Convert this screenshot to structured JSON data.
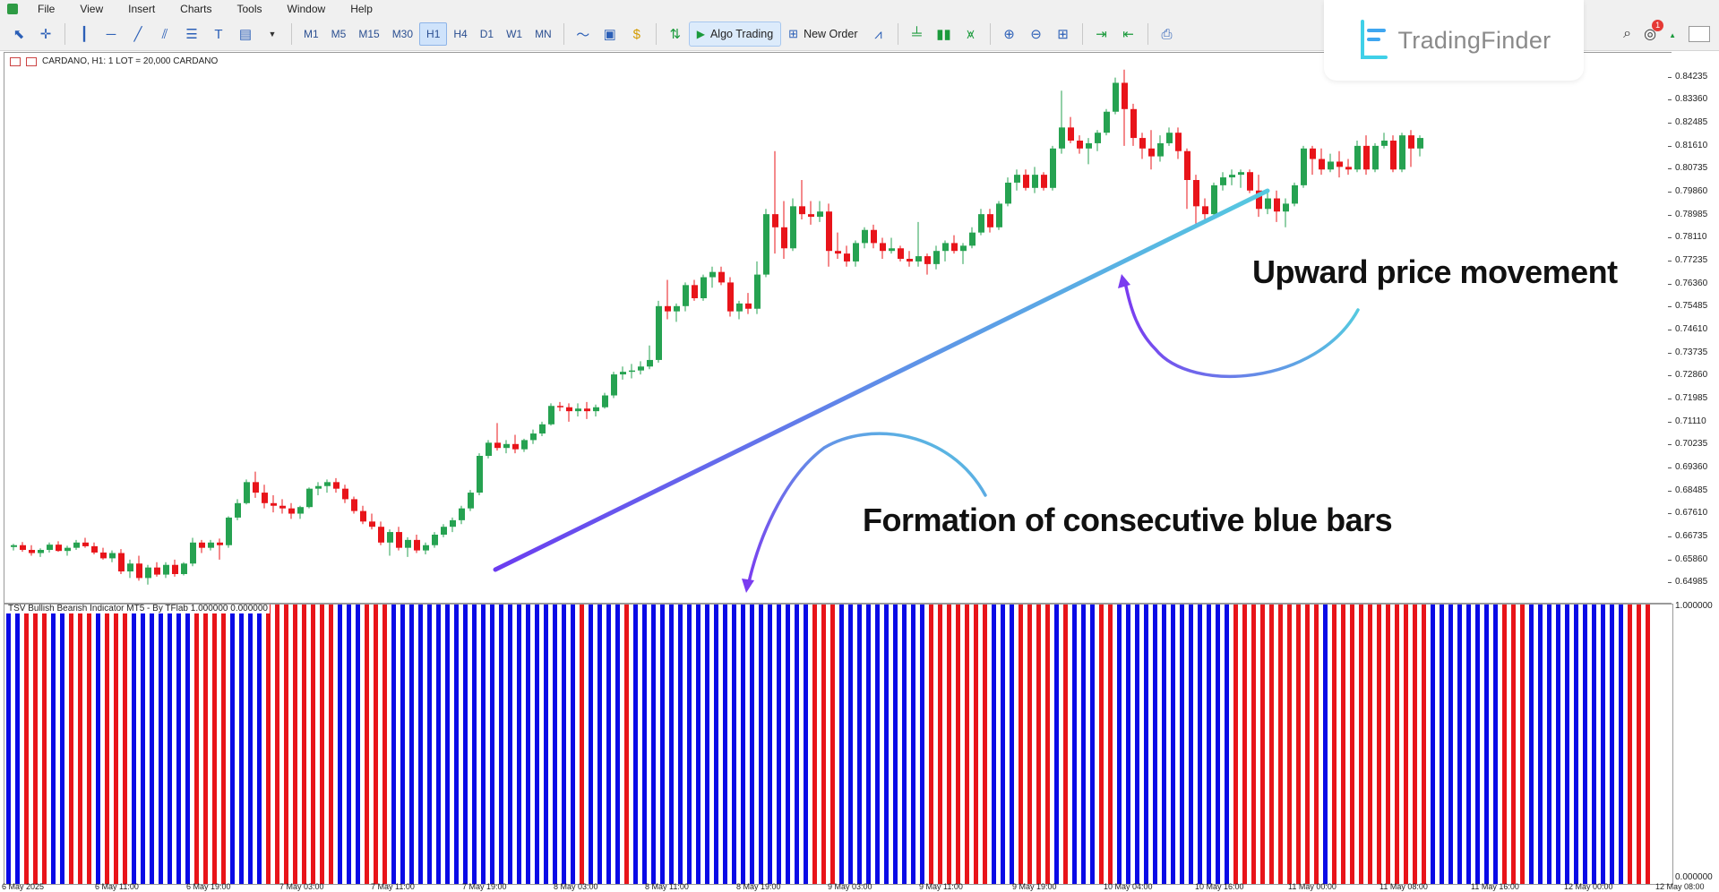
{
  "menu": [
    "File",
    "View",
    "Insert",
    "Charts",
    "Tools",
    "Window",
    "Help"
  ],
  "toolbar": {
    "timeframes": [
      "M1",
      "M5",
      "M15",
      "M30",
      "H1",
      "H4",
      "D1",
      "W1",
      "MN"
    ],
    "active_timeframe": "H1",
    "algo_trading_label": "Algo Trading",
    "new_order_label": "New Order"
  },
  "logo": {
    "text": "TradingFinder"
  },
  "notifications": {
    "count": "1"
  },
  "main_chart": {
    "title": "CARDANO, H1:  1 LOT = 20,000 CARDANO",
    "price_labels": [
      "0.84235",
      "0.83360",
      "0.82485",
      "0.81610",
      "0.80735",
      "0.79860",
      "0.78985",
      "0.78110",
      "0.77235",
      "0.76360",
      "0.75485",
      "0.74610",
      "0.73735",
      "0.72860",
      "0.71985",
      "0.71110",
      "0.70235",
      "0.69360",
      "0.68485",
      "0.67610",
      "0.66735",
      "0.65860",
      "0.64985"
    ]
  },
  "indicator": {
    "title": "TSV Bullish Bearish Indicator MT5 - By TFlab 1.000000 0.000000",
    "max_label": "1.000000",
    "min_label": "0.000000",
    "bullish_color": "#0a0ae6",
    "bearish_color": "#e8141a"
  },
  "time_labels": [
    "6 May 2025",
    "6 May 11:00",
    "6 May 19:00",
    "7 May 03:00",
    "7 May 11:00",
    "7 May 19:00",
    "8 May 03:00",
    "8 May 11:00",
    "8 May 19:00",
    "9 May 03:00",
    "9 May 11:00",
    "9 May 19:00",
    "10 May 04:00",
    "10 May 16:00",
    "11 May 00:00",
    "11 May 08:00",
    "11 May 16:00",
    "12 May 00:00",
    "12 May 08:00"
  ],
  "annotations": {
    "upward": "Upward price movement",
    "blue_bars": "Formation of consecutive blue bars"
  },
  "chart_data": {
    "type": "candlestick",
    "symbol": "CARDANO",
    "timeframe": "H1",
    "bull_color": "#26a251",
    "bear_color": "#e8141a",
    "ylim": [
      0.6455,
      0.848
    ],
    "candles": [
      [
        0.6633,
        0.6645,
        0.662,
        0.664
      ],
      [
        0.664,
        0.6652,
        0.6615,
        0.6622
      ],
      [
        0.6622,
        0.664,
        0.66,
        0.661
      ],
      [
        0.661,
        0.6628,
        0.6595,
        0.6622
      ],
      [
        0.6622,
        0.665,
        0.6612,
        0.6642
      ],
      [
        0.6642,
        0.6655,
        0.6615,
        0.6618
      ],
      [
        0.6618,
        0.6638,
        0.66,
        0.663
      ],
      [
        0.663,
        0.666,
        0.6622,
        0.665
      ],
      [
        0.665,
        0.6668,
        0.663,
        0.6636
      ],
      [
        0.6636,
        0.665,
        0.6605,
        0.6612
      ],
      [
        0.6612,
        0.663,
        0.6585,
        0.659
      ],
      [
        0.659,
        0.662,
        0.6575,
        0.661
      ],
      [
        0.661,
        0.6625,
        0.653,
        0.654
      ],
      [
        0.654,
        0.6585,
        0.6515,
        0.657
      ],
      [
        0.657,
        0.66,
        0.6505,
        0.6515
      ],
      [
        0.6515,
        0.6565,
        0.649,
        0.6555
      ],
      [
        0.6555,
        0.6575,
        0.652,
        0.6528
      ],
      [
        0.6528,
        0.6575,
        0.6515,
        0.6565
      ],
      [
        0.6565,
        0.6585,
        0.652,
        0.653
      ],
      [
        0.653,
        0.6575,
        0.6525,
        0.657
      ],
      [
        0.657,
        0.6668,
        0.656,
        0.665
      ],
      [
        0.665,
        0.666,
        0.661,
        0.663
      ],
      [
        0.663,
        0.666,
        0.662,
        0.665
      ],
      [
        0.665,
        0.6665,
        0.6585,
        0.664
      ],
      [
        0.664,
        0.675,
        0.663,
        0.6745
      ],
      [
        0.6745,
        0.6815,
        0.6735,
        0.68
      ],
      [
        0.68,
        0.689,
        0.6795,
        0.688
      ],
      [
        0.688,
        0.692,
        0.682,
        0.684
      ],
      [
        0.684,
        0.687,
        0.678,
        0.68
      ],
      [
        0.68,
        0.683,
        0.6765,
        0.679
      ],
      [
        0.679,
        0.6815,
        0.676,
        0.678
      ],
      [
        0.678,
        0.68,
        0.674,
        0.676
      ],
      [
        0.676,
        0.679,
        0.674,
        0.6785
      ],
      [
        0.6785,
        0.686,
        0.678,
        0.6855
      ],
      [
        0.6855,
        0.688,
        0.683,
        0.6865
      ],
      [
        0.6865,
        0.689,
        0.684,
        0.688
      ],
      [
        0.688,
        0.6895,
        0.684,
        0.6855
      ],
      [
        0.6855,
        0.687,
        0.68,
        0.6815
      ],
      [
        0.6815,
        0.6825,
        0.676,
        0.677
      ],
      [
        0.677,
        0.679,
        0.672,
        0.673
      ],
      [
        0.673,
        0.676,
        0.67,
        0.671
      ],
      [
        0.671,
        0.673,
        0.664,
        0.665
      ],
      [
        0.665,
        0.67,
        0.66,
        0.669
      ],
      [
        0.669,
        0.671,
        0.662,
        0.663
      ],
      [
        0.663,
        0.667,
        0.6595,
        0.666
      ],
      [
        0.666,
        0.668,
        0.661,
        0.662
      ],
      [
        0.662,
        0.665,
        0.6605,
        0.664
      ],
      [
        0.664,
        0.669,
        0.663,
        0.668
      ],
      [
        0.668,
        0.672,
        0.667,
        0.671
      ],
      [
        0.671,
        0.6745,
        0.669,
        0.6735
      ],
      [
        0.6735,
        0.679,
        0.672,
        0.678
      ],
      [
        0.678,
        0.685,
        0.677,
        0.684
      ],
      [
        0.684,
        0.699,
        0.683,
        0.698
      ],
      [
        0.698,
        0.704,
        0.697,
        0.703
      ],
      [
        0.703,
        0.7105,
        0.7,
        0.701
      ],
      [
        0.701,
        0.704,
        0.699,
        0.7025
      ],
      [
        0.7025,
        0.706,
        0.699,
        0.7005
      ],
      [
        0.7005,
        0.7045,
        0.6995,
        0.704
      ],
      [
        0.704,
        0.708,
        0.7025,
        0.7065
      ],
      [
        0.7065,
        0.711,
        0.7055,
        0.71
      ],
      [
        0.71,
        0.718,
        0.7095,
        0.717
      ],
      [
        0.717,
        0.7185,
        0.715,
        0.7165
      ],
      [
        0.7165,
        0.718,
        0.711,
        0.715
      ],
      [
        0.715,
        0.718,
        0.713,
        0.716
      ],
      [
        0.716,
        0.7185,
        0.712,
        0.715
      ],
      [
        0.715,
        0.7175,
        0.713,
        0.7165
      ],
      [
        0.7165,
        0.722,
        0.716,
        0.721
      ],
      [
        0.721,
        0.73,
        0.72,
        0.729
      ],
      [
        0.729,
        0.732,
        0.727,
        0.73
      ],
      [
        0.73,
        0.733,
        0.7275,
        0.7305
      ],
      [
        0.7305,
        0.734,
        0.729,
        0.732
      ],
      [
        0.732,
        0.74,
        0.731,
        0.7345
      ],
      [
        0.7345,
        0.757,
        0.7335,
        0.755
      ],
      [
        0.755,
        0.765,
        0.75,
        0.753
      ],
      [
        0.753,
        0.756,
        0.749,
        0.755
      ],
      [
        0.755,
        0.764,
        0.753,
        0.763
      ],
      [
        0.763,
        0.765,
        0.757,
        0.758
      ],
      [
        0.758,
        0.767,
        0.757,
        0.766
      ],
      [
        0.766,
        0.77,
        0.762,
        0.768
      ],
      [
        0.768,
        0.77,
        0.763,
        0.764
      ],
      [
        0.764,
        0.766,
        0.751,
        0.753
      ],
      [
        0.753,
        0.757,
        0.75,
        0.756
      ],
      [
        0.756,
        0.76,
        0.752,
        0.754
      ],
      [
        0.754,
        0.772,
        0.752,
        0.767
      ],
      [
        0.767,
        0.792,
        0.766,
        0.79
      ],
      [
        0.79,
        0.814,
        0.775,
        0.785
      ],
      [
        0.785,
        0.795,
        0.773,
        0.777
      ],
      [
        0.777,
        0.796,
        0.776,
        0.793
      ],
      [
        0.793,
        0.803,
        0.788,
        0.79
      ],
      [
        0.79,
        0.795,
        0.786,
        0.789
      ],
      [
        0.789,
        0.795,
        0.787,
        0.791
      ],
      [
        0.791,
        0.794,
        0.77,
        0.776
      ],
      [
        0.776,
        0.783,
        0.773,
        0.775
      ],
      [
        0.775,
        0.778,
        0.77,
        0.772
      ],
      [
        0.772,
        0.78,
        0.77,
        0.779
      ],
      [
        0.779,
        0.785,
        0.777,
        0.784
      ],
      [
        0.784,
        0.786,
        0.777,
        0.779
      ],
      [
        0.779,
        0.781,
        0.773,
        0.776
      ],
      [
        0.776,
        0.781,
        0.775,
        0.777
      ],
      [
        0.777,
        0.778,
        0.772,
        0.773
      ],
      [
        0.773,
        0.776,
        0.77,
        0.772
      ],
      [
        0.772,
        0.787,
        0.77,
        0.774
      ],
      [
        0.774,
        0.775,
        0.767,
        0.771
      ],
      [
        0.771,
        0.778,
        0.769,
        0.776
      ],
      [
        0.776,
        0.78,
        0.772,
        0.779
      ],
      [
        0.779,
        0.782,
        0.775,
        0.776
      ],
      [
        0.776,
        0.779,
        0.771,
        0.778
      ],
      [
        0.778,
        0.785,
        0.777,
        0.783
      ],
      [
        0.783,
        0.792,
        0.782,
        0.79
      ],
      [
        0.79,
        0.792,
        0.783,
        0.785
      ],
      [
        0.785,
        0.795,
        0.784,
        0.794
      ],
      [
        0.794,
        0.804,
        0.793,
        0.802
      ],
      [
        0.802,
        0.807,
        0.799,
        0.805
      ],
      [
        0.805,
        0.807,
        0.799,
        0.8
      ],
      [
        0.8,
        0.808,
        0.798,
        0.805
      ],
      [
        0.805,
        0.806,
        0.799,
        0.8
      ],
      [
        0.8,
        0.816,
        0.799,
        0.815
      ],
      [
        0.815,
        0.837,
        0.813,
        0.823
      ],
      [
        0.823,
        0.827,
        0.817,
        0.818
      ],
      [
        0.818,
        0.82,
        0.813,
        0.815
      ],
      [
        0.815,
        0.819,
        0.809,
        0.817
      ],
      [
        0.817,
        0.822,
        0.814,
        0.821
      ],
      [
        0.821,
        0.83,
        0.82,
        0.829
      ],
      [
        0.829,
        0.842,
        0.828,
        0.84
      ],
      [
        0.84,
        0.845,
        0.816,
        0.83
      ],
      [
        0.83,
        0.832,
        0.816,
        0.819
      ],
      [
        0.819,
        0.821,
        0.811,
        0.815
      ],
      [
        0.815,
        0.822,
        0.807,
        0.812
      ],
      [
        0.812,
        0.82,
        0.81,
        0.817
      ],
      [
        0.817,
        0.823,
        0.816,
        0.821
      ],
      [
        0.821,
        0.823,
        0.811,
        0.814
      ],
      [
        0.814,
        0.815,
        0.792,
        0.803
      ],
      [
        0.803,
        0.805,
        0.786,
        0.793
      ],
      [
        0.793,
        0.796,
        0.788,
        0.79
      ],
      [
        0.79,
        0.802,
        0.789,
        0.801
      ],
      [
        0.801,
        0.806,
        0.799,
        0.804
      ],
      [
        0.804,
        0.807,
        0.801,
        0.805
      ],
      [
        0.805,
        0.807,
        0.8,
        0.806
      ],
      [
        0.806,
        0.807,
        0.798,
        0.799
      ],
      [
        0.799,
        0.805,
        0.789,
        0.792
      ],
      [
        0.792,
        0.799,
        0.79,
        0.796
      ],
      [
        0.796,
        0.799,
        0.787,
        0.791
      ],
      [
        0.791,
        0.796,
        0.785,
        0.794
      ],
      [
        0.794,
        0.802,
        0.793,
        0.801
      ],
      [
        0.801,
        0.816,
        0.8,
        0.815
      ],
      [
        0.815,
        0.816,
        0.805,
        0.811
      ],
      [
        0.811,
        0.815,
        0.805,
        0.807
      ],
      [
        0.807,
        0.813,
        0.806,
        0.81
      ],
      [
        0.81,
        0.814,
        0.804,
        0.808
      ],
      [
        0.808,
        0.811,
        0.805,
        0.807
      ],
      [
        0.807,
        0.818,
        0.806,
        0.816
      ],
      [
        0.816,
        0.82,
        0.805,
        0.807
      ],
      [
        0.807,
        0.817,
        0.806,
        0.816
      ],
      [
        0.816,
        0.821,
        0.815,
        0.818
      ],
      [
        0.818,
        0.82,
        0.806,
        0.807
      ],
      [
        0.807,
        0.821,
        0.806,
        0.82
      ],
      [
        0.82,
        0.822,
        0.808,
        0.815
      ],
      [
        0.815,
        0.82,
        0.812,
        0.819
      ]
    ],
    "indicator_states": "1100011000100011111110000111100000000111000111111111111111111111011110111111111111111111110001111111111000000011100001011100111111111111100000000001000000000001111111100011111111111000"
  }
}
